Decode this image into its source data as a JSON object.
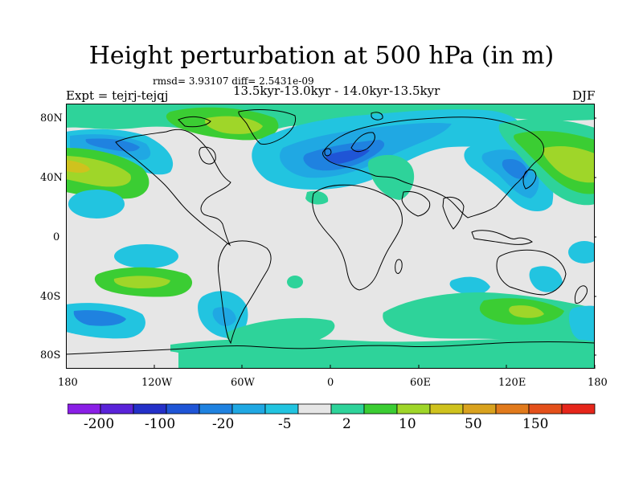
{
  "title": "Height perturbation at 500 hPa (in m)",
  "stats": "rmsd= 3.93107 diff= 2.5431e-09",
  "experiment": "Expt = tejrj-tejqj",
  "period": "13.5kyr-13.0kyr - 14.0kyr-13.5kyr",
  "season": "DJF",
  "axes": {
    "lat_ticks": [
      "80N",
      "40N",
      "0",
      "40S",
      "80S"
    ],
    "lon_ticks": [
      "180",
      "120W",
      "60W",
      "0",
      "60E",
      "120E",
      "180"
    ]
  },
  "colorbar": {
    "colors": [
      "#8a1fe6",
      "#5a23d9",
      "#2430c8",
      "#1f55d6",
      "#1f82e0",
      "#20a8e3",
      "#22c4e0",
      "#e6e6e6",
      "#2ed39a",
      "#3bcd33",
      "#9fd629",
      "#cfc21e",
      "#d9a21e",
      "#e17a1c",
      "#e4501b",
      "#e6261b"
    ],
    "labels": [
      "-200",
      "-100",
      "-20",
      "-5",
      "2",
      "10",
      "50",
      "150"
    ]
  },
  "map_colors": {
    "background": "#e6e6e6",
    "coast": "#000000"
  }
}
